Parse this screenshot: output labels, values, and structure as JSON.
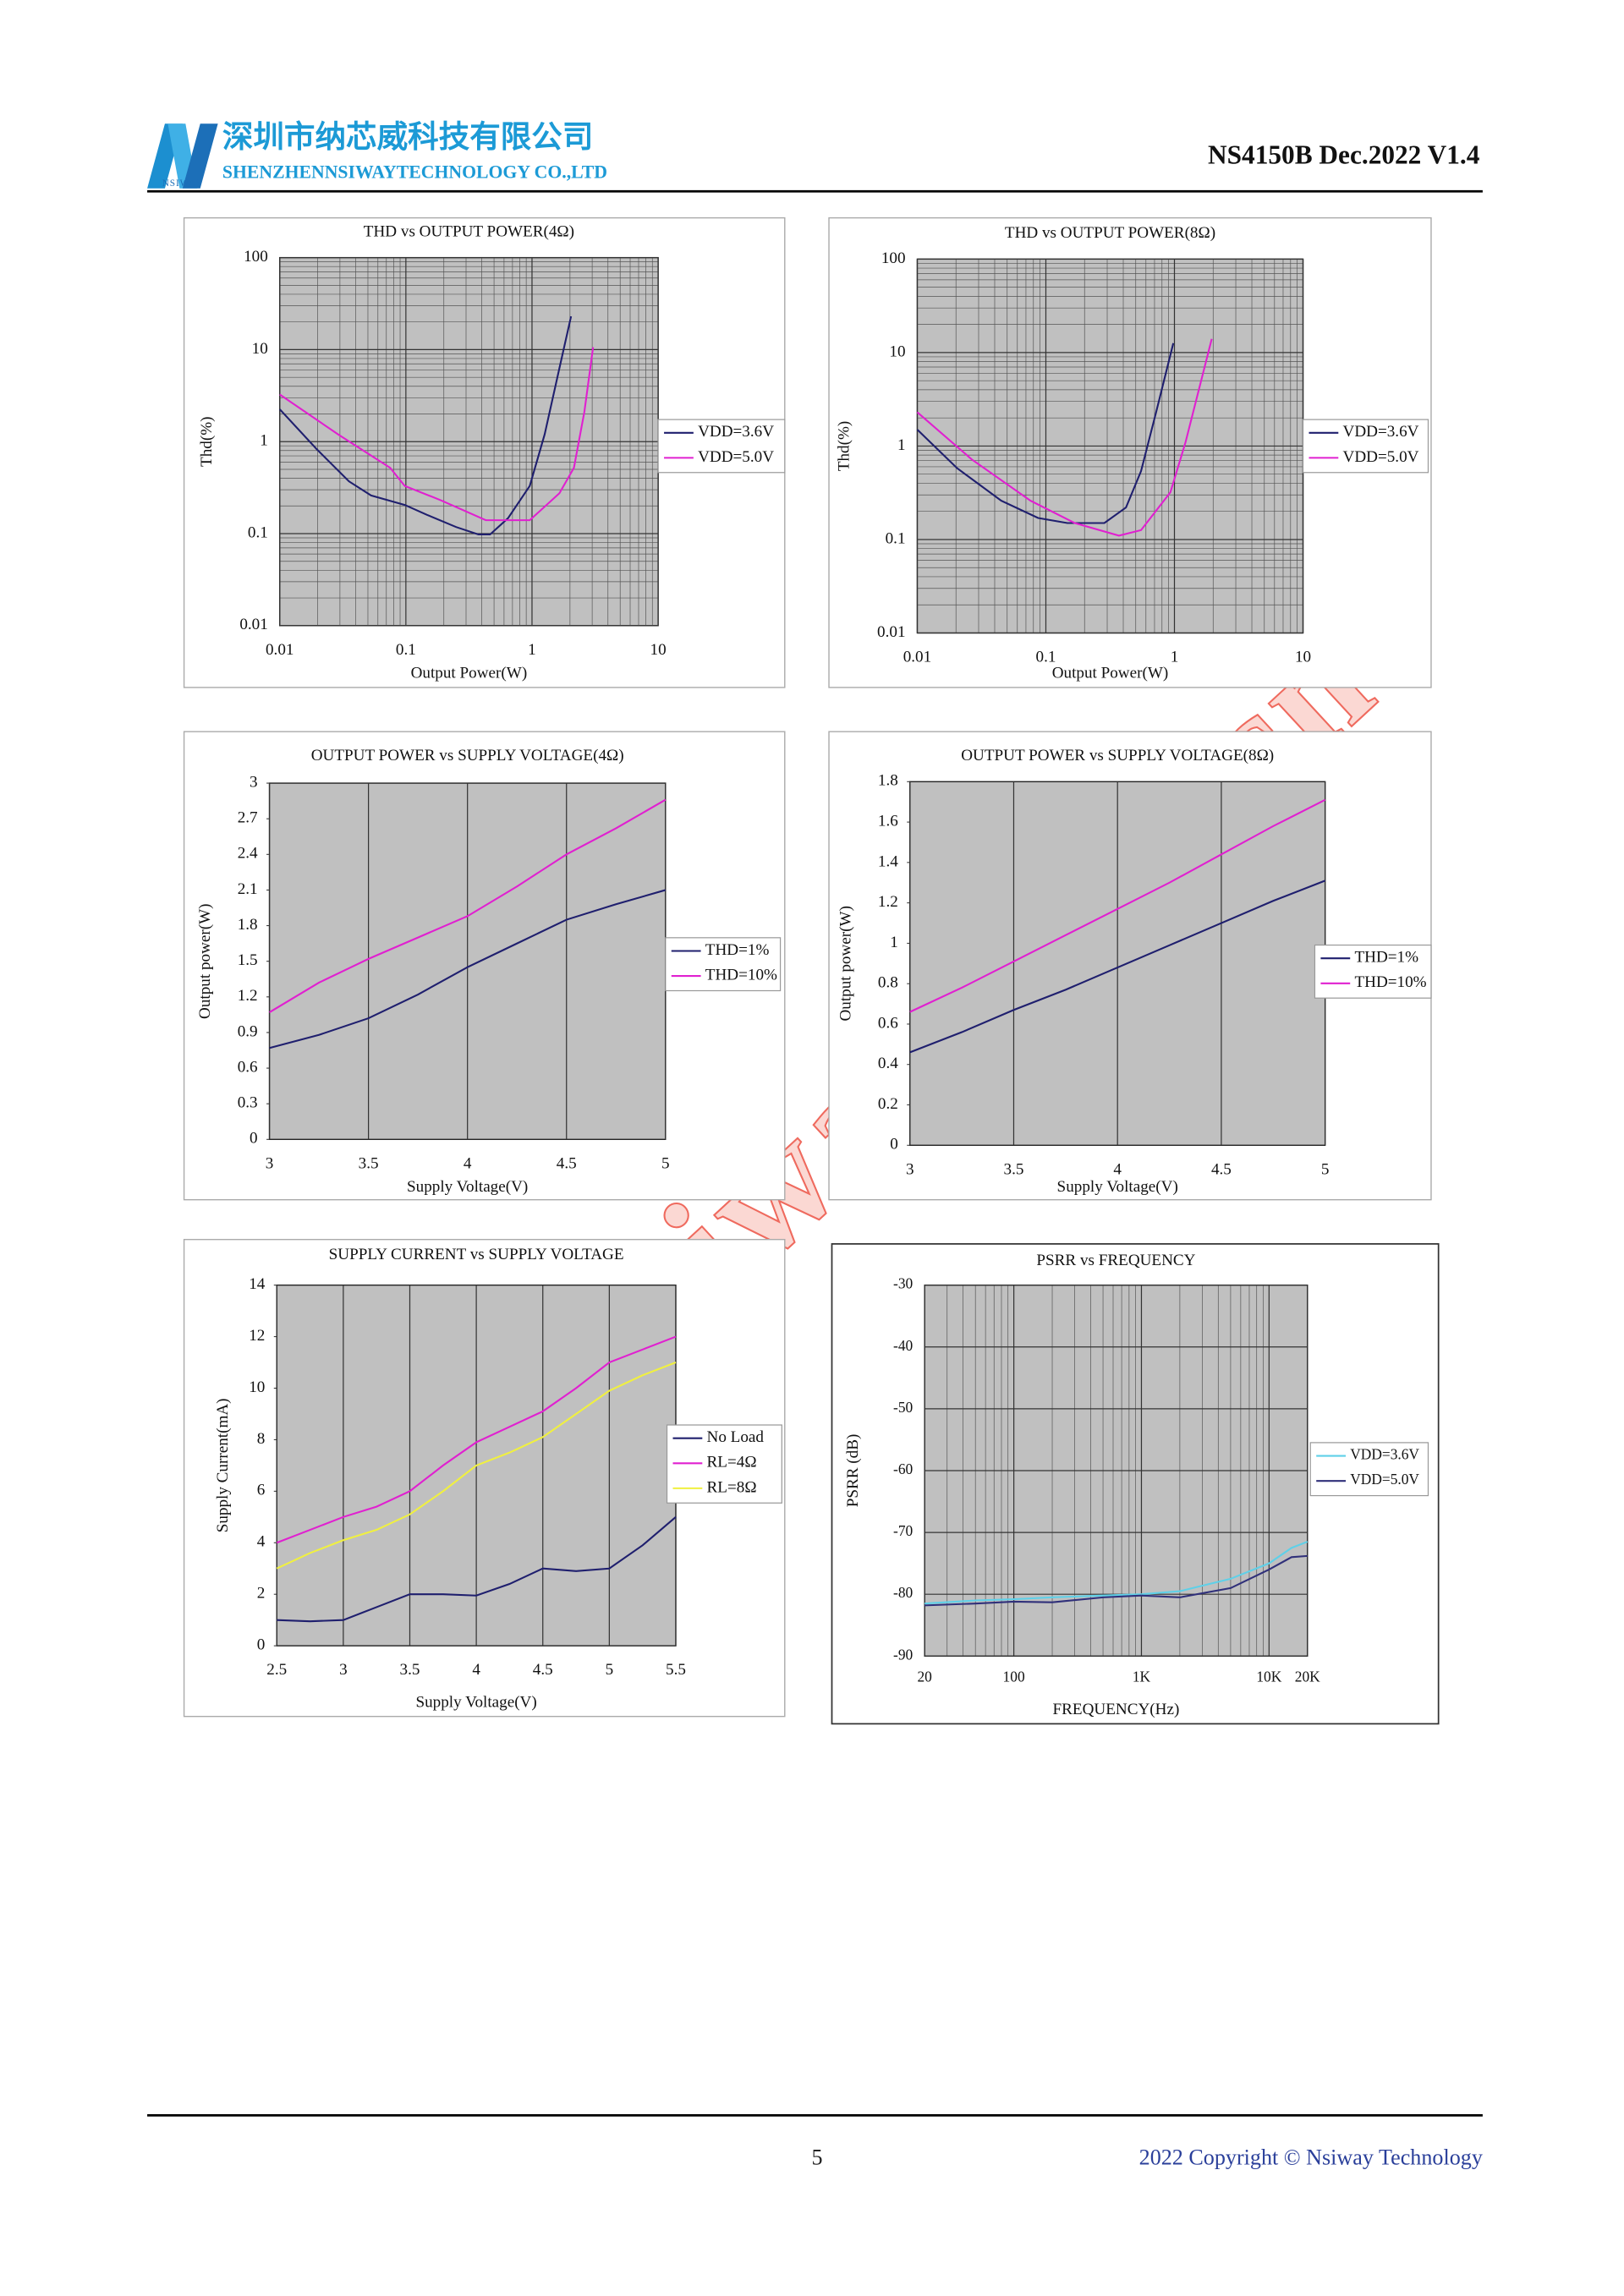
{
  "header": {
    "company_cn": "深圳市纳芯威科技有限公司",
    "company_en": "SHENZHENNSIWAYTECHNOLOGY CO.,LTD",
    "logo_text": "NSIWAY",
    "doc": "NS4150B Dec.2022 V1.4"
  },
  "watermark": "www.nsiway.com.cn",
  "chart_data": [
    {
      "type": "line",
      "title": "THD vs OUTPUT POWER(4Ω)",
      "xlabel": "Output Power(W)",
      "ylabel": "Thd(%)",
      "xlog": true,
      "ylog": true,
      "xlim": [
        0.01,
        10
      ],
      "ylim": [
        0.01,
        100
      ],
      "xticks": [
        0.01,
        0.1,
        1,
        10
      ],
      "yticks": [
        0.01,
        0.1,
        1,
        10,
        100
      ],
      "grid": true,
      "minor_grid": true,
      "legend": "right",
      "series": [
        {
          "name": "VDD=3.6V",
          "color": "#1f1f6e",
          "x": [
            0.01,
            0.0196,
            0.0354,
            0.053,
            0.098,
            0.147,
            0.25,
            0.376,
            0.465,
            0.645,
            0.96,
            1.26,
            1.65,
            2.04
          ],
          "values": [
            2.25,
            0.83,
            0.37,
            0.26,
            0.205,
            0.16,
            0.118,
            0.098,
            0.098,
            0.147,
            0.33,
            1.2,
            6.3,
            23
          ]
        },
        {
          "name": "VDD=5.0V",
          "color": "#e020d0",
          "x": [
            0.01,
            0.029,
            0.075,
            0.098,
            0.19,
            0.43,
            0.96,
            1.65,
            2.15,
            2.6,
            3.05
          ],
          "values": [
            3.25,
            1.2,
            0.52,
            0.33,
            0.23,
            0.14,
            0.14,
            0.275,
            0.52,
            2.1,
            10.6
          ]
        }
      ]
    },
    {
      "type": "line",
      "title": "THD vs OUTPUT POWER(8Ω)",
      "xlabel": "Output Power(W)",
      "ylabel": "Thd(%)",
      "xlog": true,
      "ylog": true,
      "xlim": [
        0.01,
        10
      ],
      "ylim": [
        0.01,
        100
      ],
      "xticks": [
        0.01,
        0.1,
        1,
        10
      ],
      "yticks": [
        0.01,
        0.1,
        1,
        10,
        100
      ],
      "grid": true,
      "minor_grid": true,
      "legend": "right",
      "series": [
        {
          "name": "VDD=3.6V",
          "color": "#1f1f6e",
          "x": [
            0.01,
            0.0204,
            0.045,
            0.087,
            0.147,
            0.285,
            0.42,
            0.55,
            0.72,
            0.98
          ],
          "values": [
            1.5,
            0.58,
            0.26,
            0.17,
            0.15,
            0.15,
            0.22,
            0.54,
            2.3,
            12.6
          ]
        },
        {
          "name": "VDD=5.0V",
          "color": "#e020d0",
          "x": [
            0.01,
            0.0265,
            0.076,
            0.168,
            0.37,
            0.55,
            0.93,
            1.22,
            1.95
          ],
          "values": [
            2.3,
            0.72,
            0.26,
            0.15,
            0.11,
            0.126,
            0.32,
            1.1,
            14
          ]
        }
      ]
    },
    {
      "type": "line",
      "title": "OUTPUT POWER vs SUPPLY VOLTAGE(4Ω)",
      "xlabel": "Supply Voltage(V)",
      "ylabel": "Output power(W)",
      "xlim": [
        3,
        5
      ],
      "ylim": [
        0,
        3
      ],
      "xticks": [
        3,
        3.5,
        4,
        4.5,
        5
      ],
      "yticks": [
        0,
        0.3,
        0.6,
        0.9,
        1.2,
        1.5,
        1.8,
        2.1,
        2.4,
        2.7,
        3
      ],
      "grid": "x",
      "legend": "right",
      "x": [
        3,
        3.25,
        3.5,
        3.75,
        4,
        4.25,
        4.5,
        4.75,
        5
      ],
      "series": [
        {
          "name": "THD=1%",
          "color": "#1f1f6e",
          "values": [
            0.77,
            0.88,
            1.02,
            1.22,
            1.45,
            1.65,
            1.85,
            1.98,
            2.1
          ]
        },
        {
          "name": "THD=10%",
          "color": "#e020d0",
          "values": [
            1.07,
            1.32,
            1.52,
            1.7,
            1.88,
            2.13,
            2.4,
            2.62,
            2.86
          ]
        }
      ]
    },
    {
      "type": "line",
      "title": "OUTPUT POWER vs SUPPLY VOLTAGE(8Ω)",
      "xlabel": "Supply Voltage(V)",
      "ylabel": "Output power(W)",
      "xlim": [
        3,
        5
      ],
      "ylim": [
        0,
        1.8
      ],
      "xticks": [
        3,
        3.5,
        4,
        4.5,
        5
      ],
      "yticks": [
        0,
        0.2,
        0.4,
        0.6,
        0.8,
        1,
        1.2,
        1.4,
        1.6,
        1.8
      ],
      "grid": "x",
      "legend": "right",
      "x": [
        3,
        3.25,
        3.5,
        3.75,
        4,
        4.25,
        4.5,
        4.75,
        5
      ],
      "series": [
        {
          "name": "THD=1%",
          "color": "#1f1f6e",
          "values": [
            0.46,
            0.56,
            0.67,
            0.77,
            0.88,
            0.99,
            1.1,
            1.21,
            1.31
          ]
        },
        {
          "name": "THD=10%",
          "color": "#e020d0",
          "values": [
            0.66,
            0.78,
            0.91,
            1.04,
            1.17,
            1.3,
            1.44,
            1.58,
            1.71
          ]
        }
      ]
    },
    {
      "type": "line",
      "title": "SUPPLY CURRENT vs SUPPLY VOLTAGE",
      "xlabel": "Supply Voltage(V)",
      "ylabel": "Supply Current(mA)",
      "xlim": [
        2.5,
        5.5
      ],
      "ylim": [
        0,
        14
      ],
      "xticks": [
        2.5,
        3,
        3.5,
        4,
        4.5,
        5,
        5.5
      ],
      "yticks": [
        0,
        2,
        4,
        6,
        8,
        10,
        12,
        14
      ],
      "grid": "x",
      "legend": "right",
      "x": [
        2.5,
        2.75,
        3,
        3.25,
        3.5,
        3.75,
        4,
        4.25,
        4.5,
        4.75,
        5,
        5.25,
        5.5
      ],
      "series": [
        {
          "name": "No Load",
          "color": "#1f1f6e",
          "values": [
            1.0,
            0.95,
            1.0,
            1.5,
            2.0,
            2.0,
            1.95,
            2.4,
            3.0,
            2.9,
            3.0,
            3.9,
            5.0
          ]
        },
        {
          "name": "RL=4Ω",
          "color": "#e020d0",
          "values": [
            4.0,
            4.5,
            5.0,
            5.4,
            6.0,
            7.0,
            7.9,
            8.5,
            9.1,
            10.0,
            11.0,
            11.5,
            12.0
          ]
        },
        {
          "name": "RL=8Ω",
          "color": "#f0f040",
          "values": [
            3.0,
            3.6,
            4.1,
            4.5,
            5.1,
            6.0,
            7.0,
            7.5,
            8.1,
            9.0,
            9.9,
            10.5,
            11.0
          ]
        }
      ]
    },
    {
      "type": "line",
      "title": "PSRR vs FREQUENCY",
      "xlabel": "FREQUENCY(Hz)",
      "ylabel": "PSRR (dB)",
      "xlog": true,
      "xlim": [
        20,
        20000
      ],
      "ylim": [
        -90,
        -30
      ],
      "xticks": [
        20,
        100,
        {
          "value": 1000,
          "label": "1K"
        },
        {
          "value": 10000,
          "label": "10K"
        },
        {
          "value": 20000,
          "label": "20K"
        }
      ],
      "yticks": [
        -90,
        -80,
        -70,
        -60,
        -50,
        -40,
        -30
      ],
      "grid": true,
      "minor_grid": true,
      "legend": "right",
      "x": [
        20,
        50,
        100,
        200,
        500,
        1000,
        2000,
        5000,
        10000,
        15000,
        20000
      ],
      "series": [
        {
          "name": "VDD=3.6V",
          "color": "#5fd0e8",
          "values": [
            -81.5,
            -81,
            -80.8,
            -80.5,
            -80.2,
            -80,
            -79.5,
            -77.5,
            -75,
            -72.5,
            -71.5
          ]
        },
        {
          "name": "VDD=5.0V",
          "color": "#30307a",
          "values": [
            -81.8,
            -81.5,
            -81.2,
            -81.3,
            -80.5,
            -80.2,
            -80.5,
            -79,
            -76,
            -74,
            -73.8
          ]
        }
      ]
    }
  ],
  "footer": {
    "page": 5,
    "copyright": "2022 Copyright © Nsiway Technology"
  }
}
